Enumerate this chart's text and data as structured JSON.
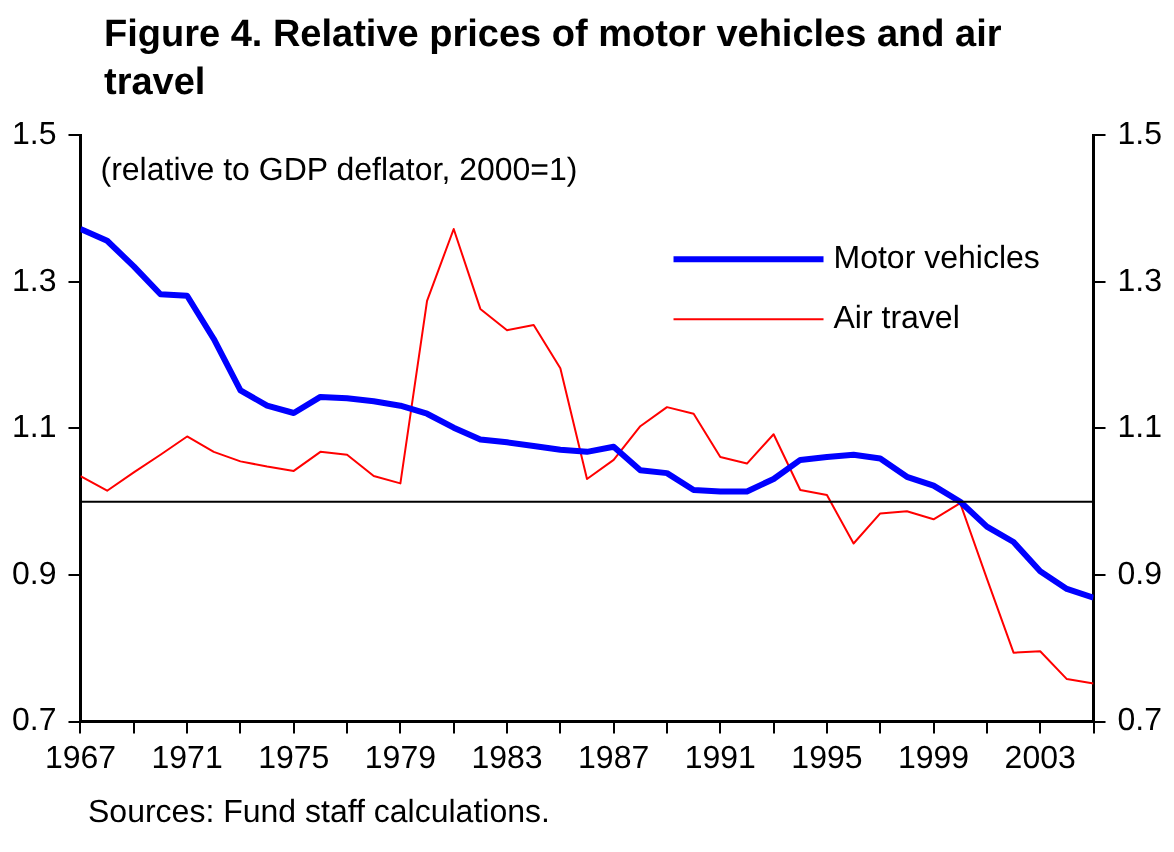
{
  "chart_data": {
    "type": "line",
    "title": "Figure 4. Relative prices of motor vehicles and air travel",
    "subtitle": "(relative to GDP deflator, 2000=1)",
    "x": [
      1967,
      1968,
      1969,
      1970,
      1971,
      1972,
      1973,
      1974,
      1975,
      1976,
      1977,
      1978,
      1979,
      1980,
      1981,
      1982,
      1983,
      1984,
      1985,
      1986,
      1987,
      1988,
      1989,
      1990,
      1991,
      1992,
      1993,
      1994,
      1995,
      1996,
      1997,
      1998,
      1999,
      2000,
      2001,
      2002,
      2003,
      2004,
      2005
    ],
    "series": [
      {
        "name": "Motor vehicles",
        "color": "#0000ff",
        "values": [
          1.372,
          1.356,
          1.321,
          1.283,
          1.281,
          1.222,
          1.152,
          1.131,
          1.121,
          1.143,
          1.141,
          1.137,
          1.131,
          1.12,
          1.101,
          1.085,
          1.081,
          1.076,
          1.071,
          1.068,
          1.075,
          1.043,
          1.039,
          1.016,
          1.014,
          1.014,
          1.031,
          1.057,
          1.061,
          1.064,
          1.059,
          1.034,
          1.022,
          1.0,
          0.966,
          0.945,
          0.905,
          0.881,
          0.869
        ]
      },
      {
        "name": "Air travel",
        "color": "#ff0000",
        "values": [
          1.035,
          1.015,
          1.04,
          1.064,
          1.089,
          1.068,
          1.055,
          1.048,
          1.042,
          1.068,
          1.064,
          1.035,
          1.025,
          1.274,
          1.372,
          1.263,
          1.234,
          1.241,
          1.182,
          1.031,
          1.057,
          1.103,
          1.129,
          1.12,
          1.061,
          1.052,
          1.092,
          1.016,
          1.009,
          0.943,
          0.984,
          0.987,
          0.976,
          0.998,
          0.895,
          0.794,
          0.796,
          0.758,
          0.752
        ]
      }
    ],
    "xlim": [
      1967,
      2005
    ],
    "xticks": [
      1967,
      {
        "value": 1969,
        "label": null
      },
      1971,
      {
        "value": 1973,
        "label": null
      },
      1975,
      {
        "value": 1977,
        "label": null
      },
      1979,
      {
        "value": 1981,
        "label": null
      },
      1983,
      {
        "value": 1985,
        "label": null
      },
      1987,
      {
        "value": 1989,
        "label": null
      },
      1991,
      {
        "value": 1993,
        "label": null
      },
      1995,
      {
        "value": 1997,
        "label": null
      },
      1999,
      {
        "value": 2001,
        "label": null
      },
      2003,
      {
        "value": 2005,
        "label": null
      }
    ],
    "ylim": [
      0.7,
      1.5
    ],
    "yticks": [
      0.7,
      0.9,
      1.1,
      1.3,
      1.5
    ],
    "y2lim": [
      0.7,
      1.5
    ],
    "y2ticks": [
      0.7,
      0.9,
      1.1,
      1.3,
      1.5
    ],
    "ref_lines": [
      {
        "axis": "y",
        "value": 1,
        "color": "#000000"
      }
    ],
    "grid": false,
    "legend": "top right",
    "marker": "none",
    "line_style": "solid",
    "annotations": [
      "Sources: Fund staff calculations."
    ]
  }
}
